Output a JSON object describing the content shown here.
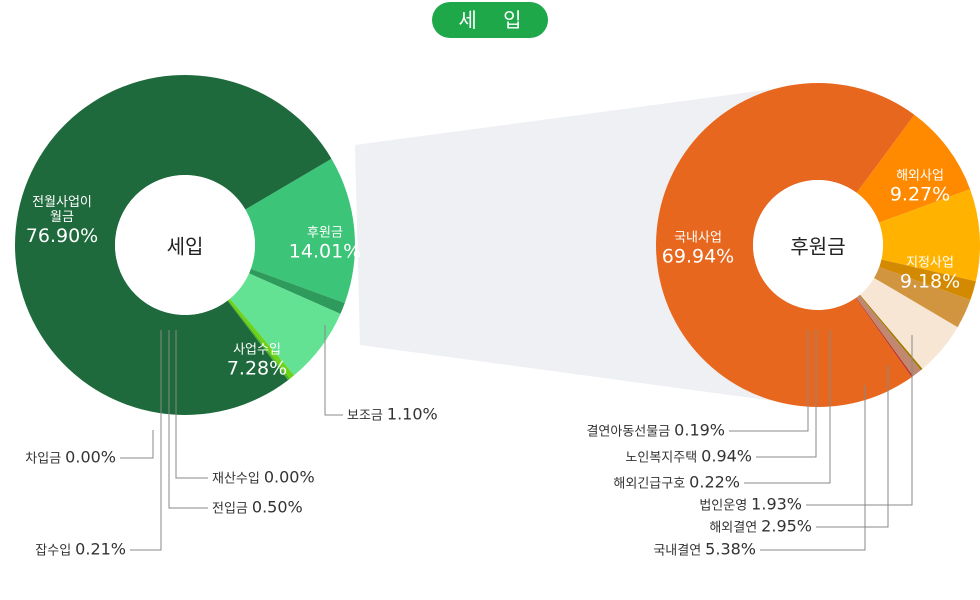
{
  "chart_data": [
    {
      "type": "donut",
      "title": "세 입",
      "center_label": "세입",
      "categories": [
        "후원금",
        "보조금",
        "사업수입",
        "재산수입",
        "전입금",
        "잡수입",
        "차입금",
        "전월사업이월금"
      ],
      "values": [
        14.01,
        1.1,
        7.28,
        0.0,
        0.5,
        0.21,
        0.0,
        76.9
      ],
      "value_labels": [
        "14.01%",
        "1.10%",
        "7.28%",
        "0.00%",
        "0.50%",
        "0.21%",
        "0.00%",
        "76.90%"
      ],
      "colors": [
        "#3cc478",
        "#2e9a5c",
        "#62e292",
        "#8fd400",
        "#6cd21a",
        "#4cb81f",
        "#2f8a50",
        "#1e6a3c"
      ]
    },
    {
      "type": "donut",
      "center_label": "후원금",
      "categories": [
        "해외사업",
        "지정사업",
        "법인운영",
        "해외결연",
        "국내결연",
        "해외긴급구호",
        "노인복지주택",
        "결연아동선물금",
        "국내사업"
      ],
      "values": [
        9.27,
        9.18,
        1.93,
        2.95,
        5.38,
        0.22,
        0.94,
        0.19,
        69.94
      ],
      "value_labels": [
        "9.27%",
        "9.18%",
        "1.93%",
        "2.95%",
        "5.38%",
        "0.22%",
        "0.94%",
        "0.19%",
        "69.94%"
      ],
      "colors": [
        "#ff8a00",
        "#ffb300",
        "#d48a00",
        "#d2953f",
        "#f8e6d4",
        "#a37a00",
        "#c08870",
        "#c0392b",
        "#e8671e"
      ]
    }
  ]
}
